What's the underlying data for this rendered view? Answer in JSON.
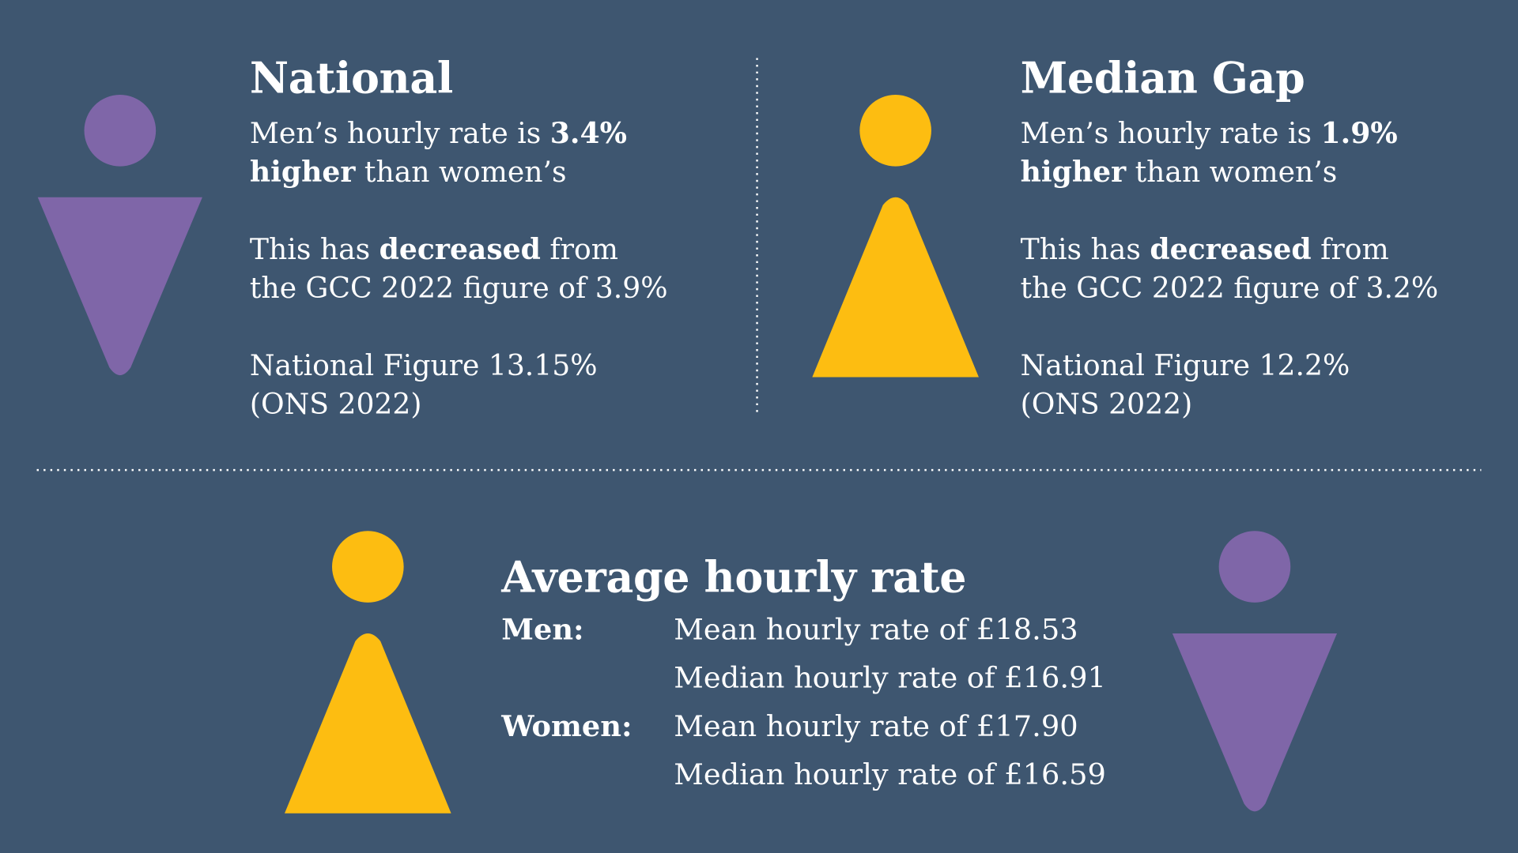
{
  "colors": {
    "background": "#3e5670",
    "female": "#7f66a8",
    "male": "#fdbd11",
    "text": "#ffffff"
  },
  "national": {
    "title": "National",
    "line1_pre": "Men’s hourly rate is ",
    "line1_bold": "3.4%",
    "line2_bold": "higher",
    "line2_post": " than women’s",
    "line3_pre": "This has ",
    "line3_bold": "decreased",
    "line3_post": " from",
    "line4": "the GCC 2022 figure of 3.9%",
    "line5": "National Figure 13.15%",
    "line6": "(ONS 2022)"
  },
  "median_gap": {
    "title": "Median Gap",
    "line1_pre": "Men’s hourly rate is ",
    "line1_bold": "1.9%",
    "line2_bold": "higher",
    "line2_post": " than women’s",
    "line3_pre": "This has ",
    "line3_bold": "decreased",
    "line3_post": " from",
    "line4": "the GCC 2022 figure of 3.2%",
    "line5": "National Figure 12.2%",
    "line6": "(ONS 2022)"
  },
  "average": {
    "title": "Average hourly rate",
    "men_label": "Men:",
    "men_mean": "Mean hourly rate of £18.53",
    "men_median": "Median hourly rate of £16.91",
    "women_label": "Women:",
    "women_mean": "Mean hourly rate of £17.90",
    "women_median": "Median hourly rate of £16.59"
  },
  "icons": {
    "top_left": "female-figure-icon",
    "top_right": "male-figure-icon",
    "bottom_left": "male-figure-icon",
    "bottom_right": "female-figure-icon"
  }
}
